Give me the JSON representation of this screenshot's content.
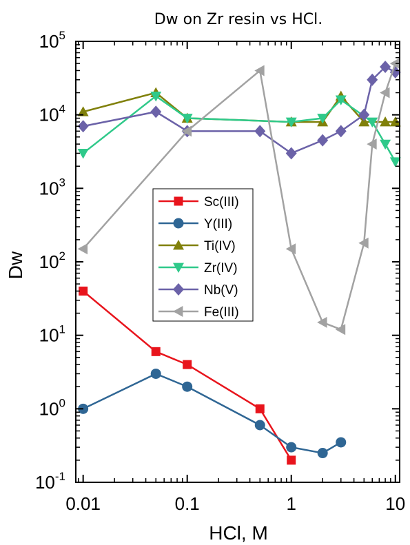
{
  "chart_data": {
    "type": "line",
    "title": "Dw on Zr resin vs HCl.",
    "xlabel": "HCl, M",
    "ylabel": "Dw",
    "xscale": "log",
    "yscale": "log",
    "xlim": [
      0.0085,
      11
    ],
    "ylim": [
      0.1,
      100000
    ],
    "x_ticks": [
      {
        "value": 0.01,
        "label": "0.01"
      },
      {
        "value": 0.1,
        "label": "0.1"
      },
      {
        "value": 1,
        "label": "1"
      },
      {
        "value": 10,
        "label": "10"
      }
    ],
    "y_ticks": [
      {
        "value": 0.1,
        "base": "10",
        "exp": "-1"
      },
      {
        "value": 1,
        "base": "10",
        "exp": "0"
      },
      {
        "value": 10,
        "base": "10",
        "exp": "1"
      },
      {
        "value": 100,
        "base": "10",
        "exp": "2"
      },
      {
        "value": 1000,
        "base": "10",
        "exp": "3"
      },
      {
        "value": 10000,
        "base": "10",
        "exp": "4"
      },
      {
        "value": 100000,
        "base": "10",
        "exp": "5"
      }
    ],
    "grid": false,
    "legend_position": "center-left",
    "series": [
      {
        "name": "Sc(III)",
        "color": "#e8141c",
        "marker": "square",
        "x": [
          0.01,
          0.05,
          0.1,
          0.5,
          1
        ],
        "y": [
          40,
          6,
          4,
          1,
          0.2
        ]
      },
      {
        "name": "Y(III)",
        "color": "#2f6694",
        "marker": "circle",
        "x": [
          0.01,
          0.05,
          0.1,
          0.5,
          1,
          2,
          3
        ],
        "y": [
          1,
          3,
          2,
          0.6,
          0.3,
          0.25,
          0.35
        ]
      },
      {
        "name": "Ti(IV)",
        "color": "#80800a",
        "marker": "triangle-up",
        "x": [
          0.01,
          0.05,
          0.1,
          1,
          2,
          3,
          5,
          8,
          10
        ],
        "y": [
          11000,
          20000,
          9000,
          8000,
          8000,
          18000,
          8000,
          8000,
          8000
        ]
      },
      {
        "name": "Zr(IV)",
        "color": "#2fc98a",
        "marker": "triangle-down",
        "x": [
          0.01,
          0.05,
          0.1,
          1,
          2,
          3,
          6,
          8,
          10
        ],
        "y": [
          3000,
          18000,
          9000,
          8000,
          9000,
          16000,
          8000,
          4000,
          2300
        ]
      },
      {
        "name": "Nb(V)",
        "color": "#6b62a8",
        "marker": "diamond",
        "x": [
          0.01,
          0.05,
          0.1,
          0.5,
          1,
          2,
          3,
          5,
          6,
          8,
          10
        ],
        "y": [
          7000,
          11000,
          6000,
          6000,
          3000,
          4500,
          6000,
          10000,
          30000,
          45000,
          38000
        ]
      },
      {
        "name": "Fe(III)",
        "color": "#a2a2a2",
        "marker": "triangle-left",
        "x": [
          0.01,
          0.1,
          0.5,
          1,
          2,
          3,
          5,
          6,
          8,
          10
        ],
        "y": [
          150,
          6000,
          40000,
          150,
          15,
          12,
          180,
          4000,
          20000,
          50000
        ]
      }
    ]
  }
}
